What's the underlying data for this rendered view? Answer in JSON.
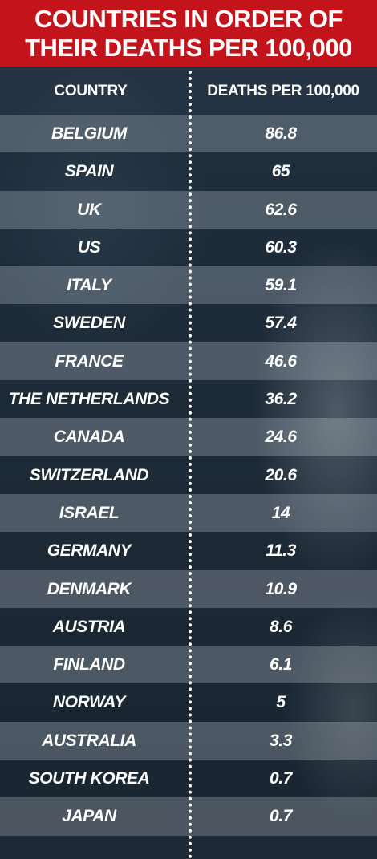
{
  "header": {
    "line1": "COUNTRIES IN ORDER OF",
    "line2": "THEIR DEATHS PER 100,000"
  },
  "columns": {
    "country": "COUNTRY",
    "deaths": "DEATHS PER 100,000"
  },
  "colors": {
    "header_bg": "#c3141b",
    "text": "#ffffff"
  },
  "chart_data": {
    "type": "table",
    "title": "COUNTRIES IN ORDER OF THEIR DEATHS PER 100,000",
    "columns": [
      "COUNTRY",
      "DEATHS PER 100,000"
    ],
    "rows": [
      [
        "BELGIUM",
        "86.8"
      ],
      [
        "SPAIN",
        "65"
      ],
      [
        "UK",
        "62.6"
      ],
      [
        "US",
        "60.3"
      ],
      [
        "ITALY",
        "59.1"
      ],
      [
        "SWEDEN",
        "57.4"
      ],
      [
        "FRANCE",
        "46.6"
      ],
      [
        "THE NETHERLANDS",
        "36.2"
      ],
      [
        "CANADA",
        "24.6"
      ],
      [
        "SWITZERLAND",
        "20.6"
      ],
      [
        "ISRAEL",
        "14"
      ],
      [
        "GERMANY",
        "11.3"
      ],
      [
        "DENMARK",
        "10.9"
      ],
      [
        "AUSTRIA",
        "8.6"
      ],
      [
        "FINLAND",
        "6.1"
      ],
      [
        "NORWAY",
        "5"
      ],
      [
        "AUSTRALIA",
        "3.3"
      ],
      [
        "SOUTH KOREA",
        "0.7"
      ],
      [
        "JAPAN",
        "0.7"
      ]
    ]
  }
}
